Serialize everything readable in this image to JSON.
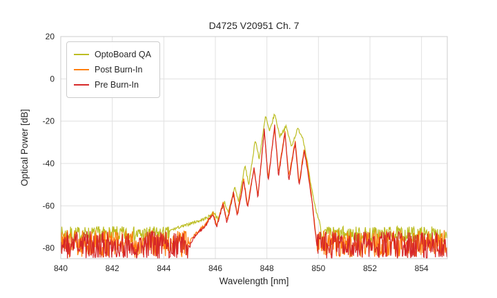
{
  "chart_data": {
    "type": "line",
    "title": "D4725 V20951 Ch. 7",
    "xlabel": "Wavelength [nm]",
    "ylabel": "Optical Power [dB]",
    "xlim": [
      840,
      855
    ],
    "ylim": [
      -85,
      20
    ],
    "xticks": [
      840,
      842,
      844,
      846,
      848,
      850,
      852,
      854
    ],
    "yticks": [
      20,
      0,
      -20,
      -40,
      -60,
      -80
    ],
    "grid": true,
    "legend_position": "upper-left",
    "series": [
      {
        "name": "OptoBoard QA",
        "color": "#bcbd22",
        "noise_floor": -73.5,
        "noise_amp": 3.8,
        "noise_regions": [
          [
            840,
            844.2
          ],
          [
            850.1,
            855
          ]
        ],
        "points": [
          [
            844.2,
            -72
          ],
          [
            844.5,
            -70.5
          ],
          [
            844.8,
            -69.5
          ],
          [
            845.1,
            -68
          ],
          [
            845.4,
            -67
          ],
          [
            845.7,
            -65.5
          ],
          [
            845.95,
            -63
          ],
          [
            846.1,
            -66.5
          ],
          [
            846.35,
            -58
          ],
          [
            846.5,
            -63.5
          ],
          [
            846.75,
            -51
          ],
          [
            846.9,
            -58
          ],
          [
            847.15,
            -41
          ],
          [
            847.3,
            -50
          ],
          [
            847.55,
            -28.5
          ],
          [
            847.7,
            -38
          ],
          [
            847.95,
            -17.5
          ],
          [
            848.1,
            -25
          ],
          [
            848.3,
            -16.5
          ],
          [
            848.5,
            -27
          ],
          [
            848.75,
            -22.5
          ],
          [
            848.95,
            -32
          ],
          [
            849.2,
            -23.5
          ],
          [
            849.4,
            -28
          ],
          [
            849.55,
            -38
          ],
          [
            849.7,
            -50
          ],
          [
            849.9,
            -62
          ],
          [
            850.1,
            -70
          ]
        ]
      },
      {
        "name": "Post Burn-In",
        "color": "#ff7f0e",
        "noise_floor": -78,
        "noise_amp": 6.5,
        "noise_regions": [
          [
            840,
            845.05
          ],
          [
            849.95,
            855
          ]
        ],
        "points": [
          [
            845.05,
            -76
          ],
          [
            845.3,
            -72.5
          ],
          [
            845.6,
            -69
          ],
          [
            845.9,
            -63.5
          ],
          [
            846.05,
            -69
          ],
          [
            846.3,
            -58.5
          ],
          [
            846.45,
            -67
          ],
          [
            846.7,
            -53.5
          ],
          [
            846.85,
            -64
          ],
          [
            847.1,
            -47.5
          ],
          [
            847.25,
            -60
          ],
          [
            847.5,
            -41.5
          ],
          [
            847.65,
            -55
          ],
          [
            847.9,
            -25
          ],
          [
            848.05,
            -47
          ],
          [
            848.3,
            -23
          ],
          [
            848.45,
            -44
          ],
          [
            848.7,
            -25
          ],
          [
            848.85,
            -46
          ],
          [
            849.1,
            -29.5
          ],
          [
            849.25,
            -49
          ],
          [
            849.45,
            -33
          ],
          [
            849.6,
            -43
          ],
          [
            849.75,
            -57
          ],
          [
            849.9,
            -74
          ],
          [
            849.95,
            -79
          ]
        ]
      },
      {
        "name": "Pre Burn-In",
        "color": "#d62728",
        "noise_floor": -78.5,
        "noise_amp": 6.5,
        "noise_regions": [
          [
            840,
            845.05
          ],
          [
            849.95,
            855
          ]
        ],
        "points": [
          [
            845.05,
            -77
          ],
          [
            845.3,
            -73
          ],
          [
            845.6,
            -69.5
          ],
          [
            845.9,
            -64
          ],
          [
            846.05,
            -70
          ],
          [
            846.3,
            -59
          ],
          [
            846.45,
            -68
          ],
          [
            846.7,
            -54
          ],
          [
            846.85,
            -65
          ],
          [
            847.1,
            -48
          ],
          [
            847.25,
            -61
          ],
          [
            847.5,
            -42
          ],
          [
            847.65,
            -56
          ],
          [
            847.9,
            -24
          ],
          [
            848.05,
            -49
          ],
          [
            848.3,
            -22
          ],
          [
            848.45,
            -46
          ],
          [
            848.7,
            -25.5
          ],
          [
            848.85,
            -48
          ],
          [
            849.1,
            -30.5
          ],
          [
            849.25,
            -51
          ],
          [
            849.45,
            -33.5
          ],
          [
            849.6,
            -45
          ],
          [
            849.75,
            -58
          ],
          [
            849.9,
            -75
          ],
          [
            849.95,
            -80
          ]
        ]
      }
    ]
  }
}
